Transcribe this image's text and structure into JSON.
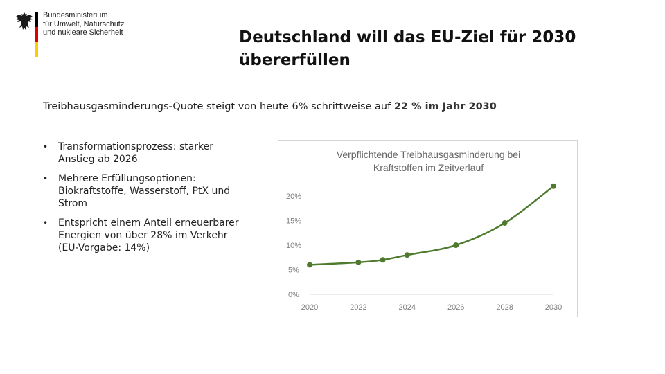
{
  "header": {
    "ministry_lines": [
      "Bundesministerium",
      "für Umwelt, Naturschutz",
      "und nukleare Sicherheit"
    ],
    "flag_colors": [
      "#000000",
      "#dd0000",
      "#ffcc00"
    ]
  },
  "slide": {
    "title": "Deutschland will das EU-Ziel für 2030 übererfüllen",
    "subtitle_prefix": "Treibhausgasminderungs-Quote steigt von heute 6% schrittweise auf ",
    "subtitle_highlight": "22 % im Jahr 2030",
    "bullets": [
      "Transformationsprozess: starker Anstieg ab 2026",
      "Mehrere Erfüllungsoptionen: Biokraftstoffe, Wasserstoff, PtX und Strom",
      "Entspricht einem Anteil erneuerbarer Energien von über 28% im Verkehr (EU-Vorgabe: 14%)"
    ]
  },
  "chart_data": {
    "type": "line",
    "title_lines": [
      "Verpflichtende Treibhausgasminderung  bei",
      "Kraftstoffen im Zeitverlauf"
    ],
    "x": [
      2020,
      2022,
      2023,
      2024,
      2026,
      2028,
      2030
    ],
    "values": [
      6.0,
      6.5,
      7.0,
      8.0,
      10.0,
      14.5,
      22.0
    ],
    "xticks": [
      "2020",
      "2022",
      "2024",
      "2026",
      "2028",
      "2030"
    ],
    "yticks": [
      "0%",
      "5%",
      "10%",
      "15%",
      "20%"
    ],
    "ylim": [
      0,
      20
    ],
    "xlim": [
      2020,
      2030
    ],
    "grid": false,
    "line_color": "#4e7a2e",
    "axis_color": "#d9d9d9"
  }
}
